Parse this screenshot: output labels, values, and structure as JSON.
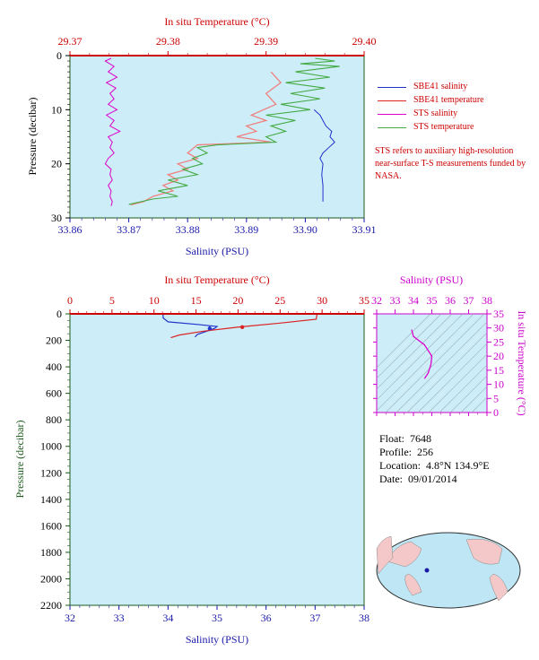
{
  "chart_data": [
    {
      "type": "line",
      "name": "upper-profile",
      "x_axis_bottom": {
        "label": "Salinity (PSU)",
        "range": [
          33.86,
          33.91
        ],
        "ticks": [
          "33.86",
          "33.87",
          "33.88",
          "33.89",
          "33.90",
          "33.91"
        ]
      },
      "x_axis_top": {
        "label": "In situ Temperature (°C)",
        "range": [
          29.37,
          29.4
        ],
        "ticks": [
          "29.37",
          "29.38",
          "29.39",
          "29.40"
        ]
      },
      "y_axis": {
        "label": "Pressure (decibar)",
        "range": [
          0,
          30
        ],
        "inverted": true,
        "ticks": [
          "0",
          "10",
          "20",
          "30"
        ]
      },
      "series": [
        {
          "name": "SBE41 salinity",
          "color": "#2233cc",
          "axis": "salinity",
          "points": [
            [
              33.9015,
              10
            ],
            [
              33.9025,
              11
            ],
            [
              33.903,
              12
            ],
            [
              33.9035,
              13
            ],
            [
              33.9045,
              14
            ],
            [
              33.9042,
              15
            ],
            [
              33.905,
              16
            ],
            [
              33.904,
              17
            ],
            [
              33.903,
              18
            ],
            [
              33.9025,
              19
            ],
            [
              33.903,
              20
            ],
            [
              33.9028,
              22
            ],
            [
              33.903,
              24
            ],
            [
              33.903,
              26
            ],
            [
              33.903,
              27
            ]
          ]
        },
        {
          "name": "SBE41 temperature",
          "color": "#dd2222",
          "axis": "temperature",
          "points": []
        },
        {
          "name": "STS salinity",
          "color": "#dd00cc",
          "axis": "salinity",
          "points": [
            [
              33.867,
              0.5
            ],
            [
              33.866,
              1
            ],
            [
              33.8675,
              2
            ],
            [
              33.8665,
              3
            ],
            [
              33.868,
              4
            ],
            [
              33.8662,
              5
            ],
            [
              33.8678,
              6
            ],
            [
              33.8668,
              7
            ],
            [
              33.8675,
              8
            ],
            [
              33.8665,
              9
            ],
            [
              33.868,
              10
            ],
            [
              33.8662,
              11
            ],
            [
              33.8675,
              12
            ],
            [
              33.8668,
              13
            ],
            [
              33.8685,
              14
            ],
            [
              33.8665,
              15
            ],
            [
              33.8672,
              16
            ],
            [
              33.8668,
              17
            ],
            [
              33.8675,
              18
            ],
            [
              33.8665,
              19
            ],
            [
              33.866,
              20
            ],
            [
              33.867,
              21
            ],
            [
              33.8668,
              22
            ],
            [
              33.8672,
              23
            ],
            [
              33.8665,
              24
            ],
            [
              33.867,
              25
            ],
            [
              33.8668,
              26
            ],
            [
              33.8672,
              27
            ],
            [
              33.867,
              27.8
            ]
          ]
        },
        {
          "name": "STS temperature",
          "color": "#44aa44",
          "axis": "temperature",
          "points": [
            [
              29.395,
              0.5
            ],
            [
              29.397,
              1
            ],
            [
              29.3935,
              1.5
            ],
            [
              29.3975,
              2
            ],
            [
              29.393,
              3
            ],
            [
              29.3965,
              4
            ],
            [
              29.392,
              5
            ],
            [
              29.396,
              6
            ],
            [
              29.3925,
              7
            ],
            [
              29.3955,
              8
            ],
            [
              29.3915,
              9
            ],
            [
              29.3945,
              10
            ],
            [
              29.39,
              11
            ],
            [
              29.393,
              12
            ],
            [
              29.3905,
              13
            ],
            [
              29.392,
              14
            ],
            [
              29.39,
              15
            ],
            [
              29.391,
              16
            ],
            [
              29.385,
              16.5
            ],
            [
              29.383,
              17
            ],
            [
              29.384,
              18
            ],
            [
              29.3825,
              19
            ],
            [
              29.3835,
              20
            ],
            [
              29.3815,
              21
            ],
            [
              29.383,
              22
            ],
            [
              29.38,
              23
            ],
            [
              29.382,
              24
            ],
            [
              29.379,
              25
            ],
            [
              29.381,
              26
            ],
            [
              29.3785,
              26.5
            ],
            [
              29.376,
              27.5
            ]
          ]
        }
      ],
      "series_salmon_trace": [
        [
          29.3905,
          3
        ],
        [
          29.3915,
          5
        ],
        [
          29.39,
          7
        ],
        [
          29.391,
          9
        ],
        [
          29.3885,
          11
        ],
        [
          29.39,
          12
        ],
        [
          29.388,
          13
        ],
        [
          29.389,
          14
        ],
        [
          29.387,
          15
        ],
        [
          29.3905,
          16
        ],
        [
          29.383,
          16.5
        ],
        [
          29.382,
          18
        ],
        [
          29.383,
          19
        ],
        [
          29.381,
          20
        ],
        [
          29.382,
          21
        ],
        [
          29.38,
          22
        ],
        [
          29.381,
          23
        ],
        [
          29.3795,
          24
        ],
        [
          29.3805,
          25
        ],
        [
          29.3785,
          26
        ],
        [
          29.3775,
          27
        ],
        [
          29.3762,
          27.6
        ]
      ]
    },
    {
      "type": "line",
      "name": "full-profile",
      "x_axis_bottom": {
        "label": "Salinity (PSU)",
        "range": [
          32,
          38
        ],
        "ticks": [
          "32",
          "33",
          "34",
          "35",
          "36",
          "37",
          "38"
        ]
      },
      "x_axis_top": {
        "label": "In situ Temperature (°C)",
        "range": [
          0,
          35
        ],
        "ticks": [
          "0",
          "5",
          "10",
          "15",
          "20",
          "25",
          "30",
          "35"
        ]
      },
      "y_axis": {
        "label": "Pressure (decibar)",
        "range": [
          0,
          2200
        ],
        "inverted": true,
        "ticks": [
          "0",
          "200",
          "400",
          "600",
          "800",
          "1000",
          "1200",
          "1400",
          "1600",
          "1800",
          "2000",
          "2200"
        ]
      },
      "series": [
        {
          "name": "salinity",
          "color": "#2233cc",
          "points": [
            [
              33.9,
              0
            ],
            [
              33.9,
              30
            ],
            [
              34.0,
              60
            ],
            [
              34.6,
              80
            ],
            [
              35.0,
              95
            ],
            [
              34.95,
              110
            ],
            [
              34.8,
              130
            ],
            [
              34.6,
              155
            ],
            [
              34.55,
              175
            ]
          ]
        },
        {
          "name": "temperature",
          "color": "#dd2222",
          "points": [
            [
              29.4,
              0
            ],
            [
              29.3,
              40
            ],
            [
              25.0,
              70
            ],
            [
              20.0,
              100
            ],
            [
              16.0,
              130
            ],
            [
              13.0,
              160
            ],
            [
              12.0,
              180
            ]
          ]
        }
      ],
      "markers": [
        {
          "series": "salinity",
          "x": 34.85,
          "y": 110
        },
        {
          "series": "temperature",
          "x": 20.5,
          "y": 100
        }
      ]
    },
    {
      "type": "scatter",
      "name": "ts-diagram",
      "x_axis_top": {
        "label": "Salinity (PSU)",
        "range": [
          32,
          38
        ],
        "ticks": [
          "32",
          "33",
          "34",
          "35",
          "36",
          "37",
          "38"
        ]
      },
      "y_axis_right": {
        "label": "In situ Temperature (°C)",
        "range": [
          0,
          35
        ],
        "ticks": [
          "0",
          "5",
          "10",
          "15",
          "20",
          "25",
          "30",
          "35"
        ]
      },
      "series": [
        {
          "name": "T-S",
          "color": "#dd00cc",
          "points": [
            [
              33.9,
              29.4
            ],
            [
              34.0,
              27
            ],
            [
              34.6,
              24
            ],
            [
              35.0,
              20
            ],
            [
              34.95,
              17
            ],
            [
              34.8,
              14
            ],
            [
              34.6,
              12
            ]
          ]
        }
      ]
    }
  ],
  "legend": {
    "items": [
      {
        "label": "SBE41 salinity",
        "color": "#2233cc"
      },
      {
        "label": "SBE41 temperature",
        "color": "#dd2222"
      },
      {
        "label": "STS salinity",
        "color": "#dd00cc"
      },
      {
        "label": "STS temperature",
        "color": "#44aa44"
      }
    ],
    "note": "STS refers to auxiliary high-resolution near-surface T-S measurements funded by NASA."
  },
  "info": {
    "float_label": "Float:",
    "float_value": "7648",
    "profile_label": "Profile:",
    "profile_value": "256",
    "location_label": "Location:",
    "location_value": "4.8°N  134.9°E",
    "date_label": "Date:",
    "date_value": "09/01/2014"
  },
  "colors": {
    "panel_bg": "#cdeef8",
    "salinity_axis": "#1a1aaa",
    "temperature_axis": "#cc0000",
    "pressure_axis": "#1a5a1a",
    "ts_axis": "#cc00cc",
    "map_ocean": "#bfe6f5",
    "map_land": "#f4c8c8"
  }
}
